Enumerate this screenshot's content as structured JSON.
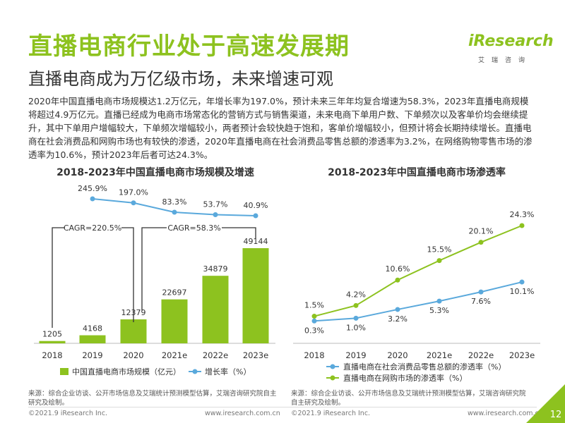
{
  "page": {
    "title": "直播电商行业处于高速发展期",
    "subtitle": "直播电商成为万亿级市场，未来增速可观",
    "paragraph": "2020年中国直播电商市场规模达1.2万亿元，年增长率为197.0%，预计未来三年年均复合增速为58.3%，2023年直播电商规模将超过4.9万亿元。直播已经成为电商市场常态化的营销方式与销售渠道，未来电商下单用户数、下单频次以及客单价均会继续提升，其中下单用户增幅较大，下单频次增幅较小，两者预计会较快趋于饱和，客单价增幅较小，但预计将会长期持续增长。直播电商在社会消费品和网购市场也有较快的渗透，2020年直播电商在社会消费品零售总额的渗透率为3.2%，在网络购物零售市场的渗透率为10.6%，预计2023年后者可达24.3%。",
    "logo_text": "iResearch",
    "logo_sub": "艾瑞咨询",
    "page_number": "12"
  },
  "colors": {
    "green": "#8dc21f",
    "blue": "#5aa9dc",
    "text": "#333333"
  },
  "chart_data": [
    {
      "type": "bar",
      "title": "2018-2023年中国直播电商市场规模及增速",
      "categories": [
        "2018",
        "2019",
        "2020",
        "2021e",
        "2022e",
        "2023e"
      ],
      "series": [
        {
          "name": "中国直播电商市场规模（亿元）",
          "type": "bar",
          "values": [
            1205,
            4168,
            12379,
            22697,
            34879,
            49144
          ],
          "labels": [
            "1205",
            "4168",
            "12379",
            "22697",
            "34879",
            "49144"
          ]
        },
        {
          "name": "增长率（%）",
          "type": "line",
          "values": [
            null,
            245.9,
            197.0,
            83.3,
            53.7,
            40.9
          ],
          "labels": [
            "",
            "245.9%",
            "197.0%",
            "83.3%",
            "53.7%",
            "40.9%"
          ]
        }
      ],
      "annotations": [
        {
          "text": "CAGR=220.5%",
          "from": "2018",
          "to": "2020"
        },
        {
          "text": "CAGR=58.3%",
          "from": "2020",
          "to": "2023e"
        }
      ],
      "legend": "bottom",
      "grid": false,
      "source": "来源：综合企业访谈、公开市场信息及艾瑞统计预测模型估算，艾瑞咨询研究院自主研究及绘制。",
      "copyright": "©2021.9 iResearch Inc.",
      "website": "www.iresearch.com.cn"
    },
    {
      "type": "line",
      "title": "2018-2023年中国直播电商市场渗透率",
      "categories": [
        "2018",
        "2019",
        "2020",
        "2021e",
        "2022e",
        "2023e"
      ],
      "series": [
        {
          "name": "直播电商在社会消费品零售总额的渗透率（%）",
          "color": "#5aa9dc",
          "values": [
            0.3,
            1.0,
            3.2,
            5.3,
            7.6,
            10.1
          ],
          "labels": [
            "0.3%",
            "1.0%",
            "3.2%",
            "5.3%",
            "7.6%",
            "10.1%"
          ]
        },
        {
          "name": "直播电商在网购市场的渗透率（%）",
          "color": "#8dc21f",
          "values": [
            1.5,
            4.2,
            10.6,
            15.5,
            20.1,
            24.3
          ],
          "labels": [
            "1.5%",
            "4.2%",
            "10.6%",
            "15.5%",
            "20.1%",
            "24.3%"
          ]
        }
      ],
      "legend": "bottom",
      "grid": false,
      "source": "来源：综合企业访谈、公开市场信息及艾瑞统计预测模型估算，艾瑞咨询研究院自主研究及绘制。",
      "copyright": "©2021.9 iResearch Inc.",
      "website": "www.iresearch.com.cn"
    }
  ]
}
